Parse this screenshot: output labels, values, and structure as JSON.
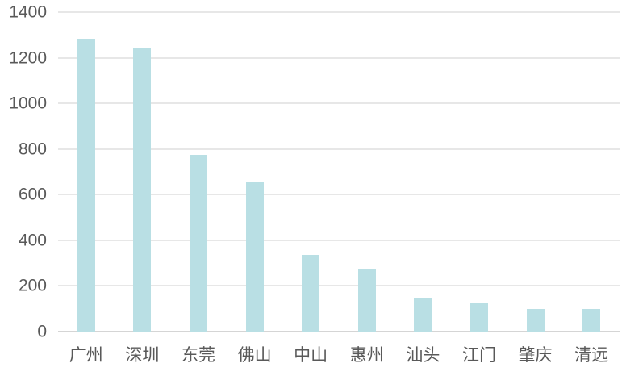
{
  "chart_data": {
    "type": "bar",
    "title": "",
    "xlabel": "",
    "ylabel": "",
    "categories": [
      "广州",
      "深圳",
      "东莞",
      "佛山",
      "中山",
      "惠州",
      "汕头",
      "江门",
      "肇庆",
      "清远"
    ],
    "values": [
      1285,
      1245,
      775,
      655,
      335,
      275,
      150,
      125,
      100,
      100
    ],
    "ylim": [
      0,
      1400
    ],
    "yticks": [
      0,
      200,
      400,
      600,
      800,
      1000,
      1200,
      1400
    ],
    "grid": true,
    "legend_position": "none",
    "bar_color": "#b9dfe4",
    "gridline_color": "#e7e7e7",
    "axis_line_color": "#d5d5d5",
    "tick_label_color": "#595959"
  }
}
